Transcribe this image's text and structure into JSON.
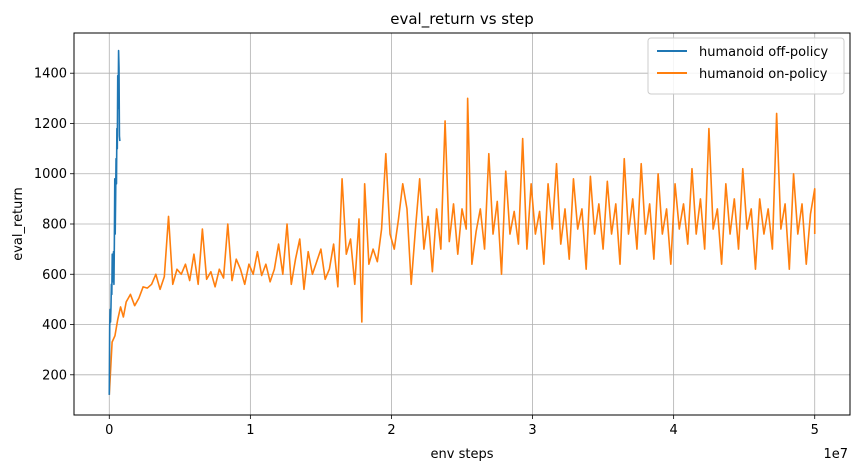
{
  "chart_data": {
    "type": "line",
    "title": "eval_return vs step",
    "xlabel": "env steps",
    "ylabel": "eval_return",
    "x_offset_text": "1e7",
    "xlim": [
      -2500000,
      52500000
    ],
    "ylim": [
      40,
      1560
    ],
    "x_ticks": [
      0,
      10000000,
      20000000,
      30000000,
      40000000,
      50000000
    ],
    "x_tick_labels": [
      "0",
      "1",
      "2",
      "3",
      "4",
      "5"
    ],
    "y_ticks": [
      200,
      400,
      600,
      800,
      1000,
      1200,
      1400
    ],
    "y_tick_labels": [
      "200",
      "400",
      "600",
      "800",
      "1000",
      "1200",
      "1400"
    ],
    "grid": true,
    "legend_position": "upper right",
    "series": [
      {
        "name": "humanoid off-policy",
        "color": "#1f77b4",
        "x": [
          0,
          30000,
          60000,
          90000,
          120000,
          150000,
          180000,
          210000,
          240000,
          270000,
          300000,
          330000,
          360000,
          390000,
          420000,
          450000,
          480000,
          510000,
          540000,
          570000,
          600000,
          630000,
          660000,
          690000,
          720000,
          750000
        ],
        "y": [
          120,
          390,
          460,
          410,
          470,
          560,
          520,
          680,
          640,
          570,
          690,
          560,
          720,
          980,
          760,
          900,
          1060,
          960,
          1180,
          1100,
          1390,
          1260,
          1490,
          1420,
          1150,
          1130
        ]
      },
      {
        "name": "humanoid on-policy",
        "color": "#ff7f0e",
        "points": [
          [
            0,
            120
          ],
          [
            200000,
            330
          ],
          [
            400000,
            355
          ],
          [
            600000,
            420
          ],
          [
            800000,
            470
          ],
          [
            1000000,
            430
          ],
          [
            1200000,
            490
          ],
          [
            1500000,
            520
          ],
          [
            1800000,
            475
          ],
          [
            2100000,
            505
          ],
          [
            2400000,
            550
          ],
          [
            2700000,
            545
          ],
          [
            3000000,
            560
          ],
          [
            3300000,
            600
          ],
          [
            3600000,
            540
          ],
          [
            3900000,
            590
          ],
          [
            4200000,
            830
          ],
          [
            4500000,
            560
          ],
          [
            4800000,
            620
          ],
          [
            5100000,
            600
          ],
          [
            5400000,
            640
          ],
          [
            5700000,
            575
          ],
          [
            6000000,
            680
          ],
          [
            6300000,
            560
          ],
          [
            6600000,
            780
          ],
          [
            6900000,
            580
          ],
          [
            7200000,
            610
          ],
          [
            7500000,
            550
          ],
          [
            7800000,
            620
          ],
          [
            8100000,
            585
          ],
          [
            8400000,
            800
          ],
          [
            8700000,
            575
          ],
          [
            9000000,
            660
          ],
          [
            9300000,
            620
          ],
          [
            9600000,
            560
          ],
          [
            9900000,
            640
          ],
          [
            10200000,
            600
          ],
          [
            10500000,
            690
          ],
          [
            10800000,
            595
          ],
          [
            11100000,
            640
          ],
          [
            11400000,
            570
          ],
          [
            11700000,
            620
          ],
          [
            12000000,
            720
          ],
          [
            12300000,
            600
          ],
          [
            12600000,
            800
          ],
          [
            12900000,
            560
          ],
          [
            13200000,
            660
          ],
          [
            13500000,
            740
          ],
          [
            13800000,
            540
          ],
          [
            14100000,
            690
          ],
          [
            14400000,
            600
          ],
          [
            14700000,
            650
          ],
          [
            15000000,
            700
          ],
          [
            15300000,
            580
          ],
          [
            15600000,
            620
          ],
          [
            15900000,
            720
          ],
          [
            16200000,
            550
          ],
          [
            16500000,
            980
          ],
          [
            16800000,
            680
          ],
          [
            17100000,
            740
          ],
          [
            17400000,
            560
          ],
          [
            17700000,
            820
          ],
          [
            17900000,
            410
          ],
          [
            18100000,
            960
          ],
          [
            18400000,
            640
          ],
          [
            18700000,
            700
          ],
          [
            19000000,
            650
          ],
          [
            19300000,
            780
          ],
          [
            19600000,
            1080
          ],
          [
            19900000,
            760
          ],
          [
            20200000,
            700
          ],
          [
            20500000,
            820
          ],
          [
            20800000,
            960
          ],
          [
            21100000,
            860
          ],
          [
            21400000,
            560
          ],
          [
            21700000,
            780
          ],
          [
            22000000,
            980
          ],
          [
            22300000,
            700
          ],
          [
            22600000,
            830
          ],
          [
            22900000,
            610
          ],
          [
            23200000,
            860
          ],
          [
            23500000,
            700
          ],
          [
            23800000,
            1210
          ],
          [
            24100000,
            730
          ],
          [
            24400000,
            880
          ],
          [
            24700000,
            680
          ],
          [
            25000000,
            860
          ],
          [
            25300000,
            780
          ],
          [
            25400000,
            1300
          ],
          [
            25700000,
            640
          ],
          [
            26000000,
            770
          ],
          [
            26300000,
            860
          ],
          [
            26600000,
            700
          ],
          [
            26900000,
            1080
          ],
          [
            27200000,
            760
          ],
          [
            27500000,
            890
          ],
          [
            27800000,
            600
          ],
          [
            28100000,
            1010
          ],
          [
            28400000,
            760
          ],
          [
            28700000,
            850
          ],
          [
            29000000,
            720
          ],
          [
            29300000,
            1140
          ],
          [
            29600000,
            700
          ],
          [
            29900000,
            960
          ],
          [
            30200000,
            760
          ],
          [
            30500000,
            850
          ],
          [
            30800000,
            640
          ],
          [
            31100000,
            960
          ],
          [
            31400000,
            780
          ],
          [
            31700000,
            1040
          ],
          [
            32000000,
            720
          ],
          [
            32300000,
            860
          ],
          [
            32600000,
            660
          ],
          [
            32900000,
            980
          ],
          [
            33200000,
            780
          ],
          [
            33500000,
            860
          ],
          [
            33800000,
            620
          ],
          [
            34100000,
            990
          ],
          [
            34400000,
            760
          ],
          [
            34700000,
            880
          ],
          [
            35000000,
            700
          ],
          [
            35300000,
            970
          ],
          [
            35600000,
            760
          ],
          [
            35900000,
            880
          ],
          [
            36200000,
            640
          ],
          [
            36500000,
            1060
          ],
          [
            36800000,
            760
          ],
          [
            37100000,
            900
          ],
          [
            37400000,
            700
          ],
          [
            37700000,
            1040
          ],
          [
            38000000,
            760
          ],
          [
            38300000,
            880
          ],
          [
            38600000,
            660
          ],
          [
            38900000,
            1000
          ],
          [
            39200000,
            760
          ],
          [
            39500000,
            860
          ],
          [
            39800000,
            640
          ],
          [
            40100000,
            960
          ],
          [
            40400000,
            780
          ],
          [
            40700000,
            880
          ],
          [
            41000000,
            720
          ],
          [
            41300000,
            1020
          ],
          [
            41600000,
            760
          ],
          [
            41900000,
            900
          ],
          [
            42200000,
            700
          ],
          [
            42500000,
            1180
          ],
          [
            42800000,
            780
          ],
          [
            43100000,
            860
          ],
          [
            43400000,
            640
          ],
          [
            43700000,
            960
          ],
          [
            44000000,
            760
          ],
          [
            44300000,
            900
          ],
          [
            44600000,
            700
          ],
          [
            44900000,
            1020
          ],
          [
            45200000,
            780
          ],
          [
            45500000,
            860
          ],
          [
            45800000,
            620
          ],
          [
            46100000,
            900
          ],
          [
            46400000,
            760
          ],
          [
            46700000,
            860
          ],
          [
            47000000,
            700
          ],
          [
            47300000,
            1240
          ],
          [
            47600000,
            780
          ],
          [
            47900000,
            880
          ],
          [
            48200000,
            620
          ],
          [
            48500000,
            1000
          ],
          [
            48800000,
            760
          ],
          [
            49100000,
            880
          ],
          [
            49400000,
            640
          ],
          [
            49700000,
            840
          ],
          [
            50000000,
            940
          ],
          [
            50000000,
            760
          ]
        ]
      }
    ]
  }
}
